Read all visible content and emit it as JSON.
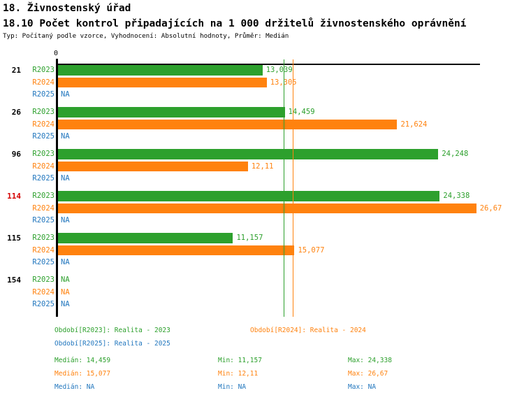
{
  "header": {
    "title": "18. Živnostenský úřad",
    "subtitle": "18.10 Počet kontrol připadajících na 1 000 držitelů živnostenského oprávnění",
    "meta": "Typ: Počítaný podle vzorce, Vyhodnocení: Absolutní hodnoty, Průměr: Medián"
  },
  "colors": {
    "r2023": "#2DA02D",
    "r2024": "#FF820E",
    "r2025": "#2277BE",
    "highlight_category": "#D40000",
    "axis": "#000000"
  },
  "chart_data": {
    "type": "bar",
    "orientation": "horizontal",
    "zero_label": "0",
    "series_periods": [
      "R2023",
      "R2024",
      "R2025"
    ],
    "categories": [
      "21",
      "26",
      "96",
      "114",
      "115",
      "154"
    ],
    "highlighted_category": "114",
    "rows": [
      {
        "category": "21",
        "values": [
          {
            "period": "R2023",
            "value": 13.039,
            "label": "13,039"
          },
          {
            "period": "R2024",
            "value": 13.305,
            "label": "13,305"
          },
          {
            "period": "R2025",
            "value": null,
            "label": "NA"
          }
        ]
      },
      {
        "category": "26",
        "values": [
          {
            "period": "R2023",
            "value": 14.459,
            "label": "14,459"
          },
          {
            "period": "R2024",
            "value": 21.624,
            "label": "21,624"
          },
          {
            "period": "R2025",
            "value": null,
            "label": "NA"
          }
        ]
      },
      {
        "category": "96",
        "values": [
          {
            "period": "R2023",
            "value": 24.248,
            "label": "24,248"
          },
          {
            "period": "R2024",
            "value": 12.11,
            "label": "12,11"
          },
          {
            "period": "R2025",
            "value": null,
            "label": "NA"
          }
        ]
      },
      {
        "category": "114",
        "values": [
          {
            "period": "R2023",
            "value": 24.338,
            "label": "24,338"
          },
          {
            "period": "R2024",
            "value": 26.67,
            "label": "26,67"
          },
          {
            "period": "R2025",
            "value": null,
            "label": "NA"
          }
        ]
      },
      {
        "category": "115",
        "values": [
          {
            "period": "R2023",
            "value": 11.157,
            "label": "11,157"
          },
          {
            "period": "R2024",
            "value": 15.077,
            "label": "15,077"
          },
          {
            "period": "R2025",
            "value": null,
            "label": "NA"
          }
        ]
      },
      {
        "category": "154",
        "values": [
          {
            "period": "R2023",
            "value": null,
            "label": "NA"
          },
          {
            "period": "R2024",
            "value": null,
            "label": "NA"
          },
          {
            "period": "R2025",
            "value": null,
            "label": "NA"
          }
        ]
      }
    ],
    "median_lines": [
      {
        "period": "R2023",
        "value": 14.459
      },
      {
        "period": "R2024",
        "value": 15.077
      }
    ],
    "xlim": [
      0,
      27
    ]
  },
  "legend": {
    "items": [
      {
        "period": "R2023",
        "label": "Období[R2023]: Realita - 2023"
      },
      {
        "period": "R2024",
        "label": "Období[R2024]: Realita - 2024"
      },
      {
        "period": "R2025",
        "label": "Období[R2025]: Realita - 2025"
      }
    ],
    "stats": [
      {
        "period": "R2023",
        "median": "Medián: 14,459",
        "min": "Min: 11,157",
        "max": "Max: 24,338"
      },
      {
        "period": "R2024",
        "median": "Medián: 15,077",
        "min": "Min: 12,11",
        "max": "Max: 26,67"
      },
      {
        "period": "R2025",
        "median": "Medián: NA",
        "min": "Min: NA",
        "max": "Max: NA"
      }
    ]
  }
}
